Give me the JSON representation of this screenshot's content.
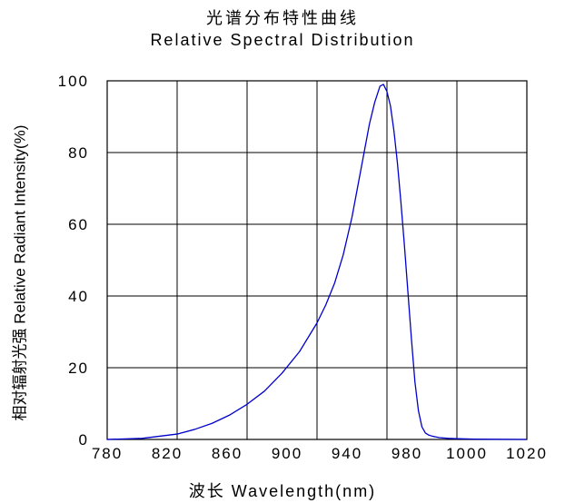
{
  "chart_data": {
    "type": "line",
    "title": "光谱分布特性曲线",
    "subtitle": "Relative Spectral Distribution",
    "xlabel": "波长  Wavelength(nm)",
    "ylabel": "相对辐射光强  Relative  Radiant Intensity(%)",
    "xlim": [
      780,
      1020
    ],
    "ylim": [
      0,
      100
    ],
    "xticks": [
      780,
      820,
      860,
      900,
      940,
      980,
      1000,
      1020
    ],
    "yticks": [
      0,
      20,
      40,
      60,
      80,
      100
    ],
    "grid": true,
    "series": [
      {
        "color": "#0000cc",
        "x": [
          780,
          800,
          820,
          830,
          840,
          850,
          860,
          870,
          880,
          890,
          900,
          905,
          910,
          915,
          920,
          925,
          930,
          933,
          936,
          938,
          940,
          942,
          944,
          946,
          948,
          950,
          952,
          954,
          956,
          958,
          960,
          962,
          964,
          966,
          968,
          970,
          975,
          980,
          990,
          1000,
          1020
        ],
        "y": [
          0,
          0.3,
          1.5,
          2.8,
          4.5,
          6.8,
          9.8,
          13.5,
          18.5,
          24.5,
          32.5,
          37.5,
          43.5,
          51.5,
          62,
          75,
          88,
          94,
          98.5,
          99,
          97,
          93,
          86,
          77,
          66,
          54,
          41,
          28,
          16,
          8,
          3.5,
          1.8,
          1.2,
          0.9,
          0.7,
          0.5,
          0.3,
          0.2,
          0.1,
          0.05,
          0
        ]
      }
    ]
  }
}
